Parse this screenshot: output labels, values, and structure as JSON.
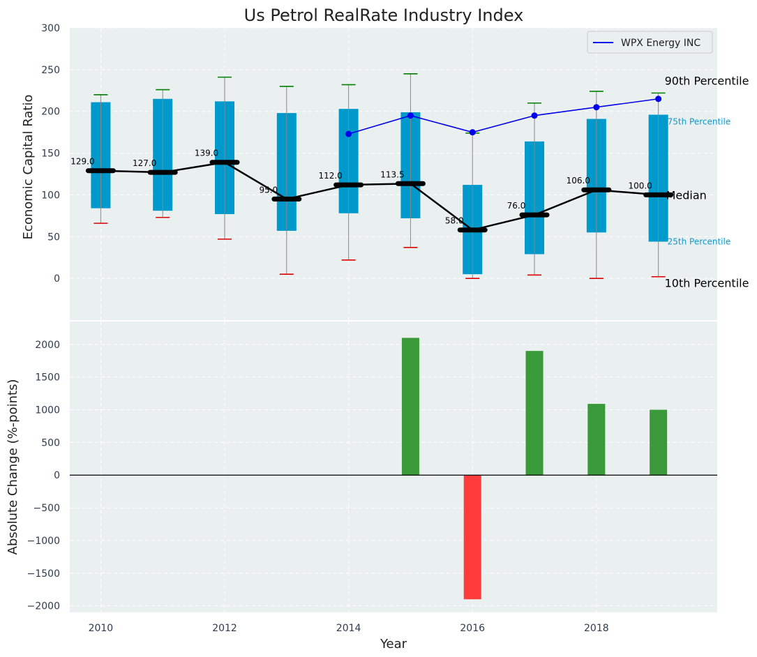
{
  "chart_data": {
    "title": "Us Petrol RealRate Industry Index",
    "top": {
      "type": "box",
      "ylabel": "Economic Capital Ratio",
      "ylim": [
        -50,
        300
      ],
      "yticks": [
        0,
        50,
        100,
        150,
        200,
        250,
        300
      ],
      "years": [
        2010,
        2011,
        2012,
        2013,
        2014,
        2015,
        2016,
        2017,
        2018,
        2019
      ],
      "p10": [
        66,
        73,
        47,
        5,
        22,
        37,
        0,
        4,
        0,
        2
      ],
      "p25": [
        84,
        81,
        77,
        57,
        78,
        72,
        5,
        29,
        55,
        44
      ],
      "median": [
        129.0,
        127.0,
        139.0,
        95.0,
        112.0,
        113.5,
        58.0,
        76.0,
        106.0,
        100.0
      ],
      "median_labels": [
        "129.0",
        "127.0",
        "139.0",
        "95.0",
        "112.0",
        "113.5",
        "58.0",
        "76.0",
        "106.0",
        "100.0"
      ],
      "p75": [
        211,
        215,
        212,
        198,
        203,
        199,
        112,
        164,
        191,
        196
      ],
      "p90": [
        220,
        226,
        241,
        230,
        232,
        245,
        174,
        210,
        224,
        222
      ],
      "company": {
        "name": "WPX Energy INC",
        "years": [
          2014,
          2015,
          2016,
          2017,
          2018,
          2019
        ],
        "values": [
          173,
          195,
          175,
          195,
          205,
          215
        ]
      },
      "annotations": {
        "p90": "90th Percentile",
        "p75": "75th Percentile",
        "median": "Median",
        "p25": "25th Percentile",
        "p10": "10th Percentile"
      }
    },
    "bottom": {
      "type": "bar",
      "xlabel": "Year",
      "ylabel": "Absolute Change (%-points)",
      "ylim": [
        -2100,
        2350
      ],
      "yticks": [
        -2000,
        -1500,
        -1000,
        -500,
        0,
        500,
        1000,
        1500,
        2000
      ],
      "ytick_labels": [
        "−2000",
        "−1500",
        "−1000",
        "−500",
        "0",
        "500",
        "1000",
        "1500",
        "2000"
      ],
      "years": [
        2015,
        2016,
        2017,
        2018,
        2019
      ],
      "values": [
        2100,
        -1900,
        1900,
        1090,
        1000
      ]
    },
    "xticks": [
      2010,
      2012,
      2014,
      2016,
      2018
    ],
    "xlim": [
      2009.5,
      2019.95
    ],
    "colors": {
      "box": "#0099cc",
      "median": "#000000",
      "company": "#0000ee",
      "p90_cap": "#008000",
      "p10_cap": "#dd0000",
      "whisker": "#888888",
      "bar_pos": "#3a9a3a",
      "bar_neg": "#ff3b3b",
      "plot_bg": "#eaeff0",
      "grid": "#ffffff"
    }
  }
}
